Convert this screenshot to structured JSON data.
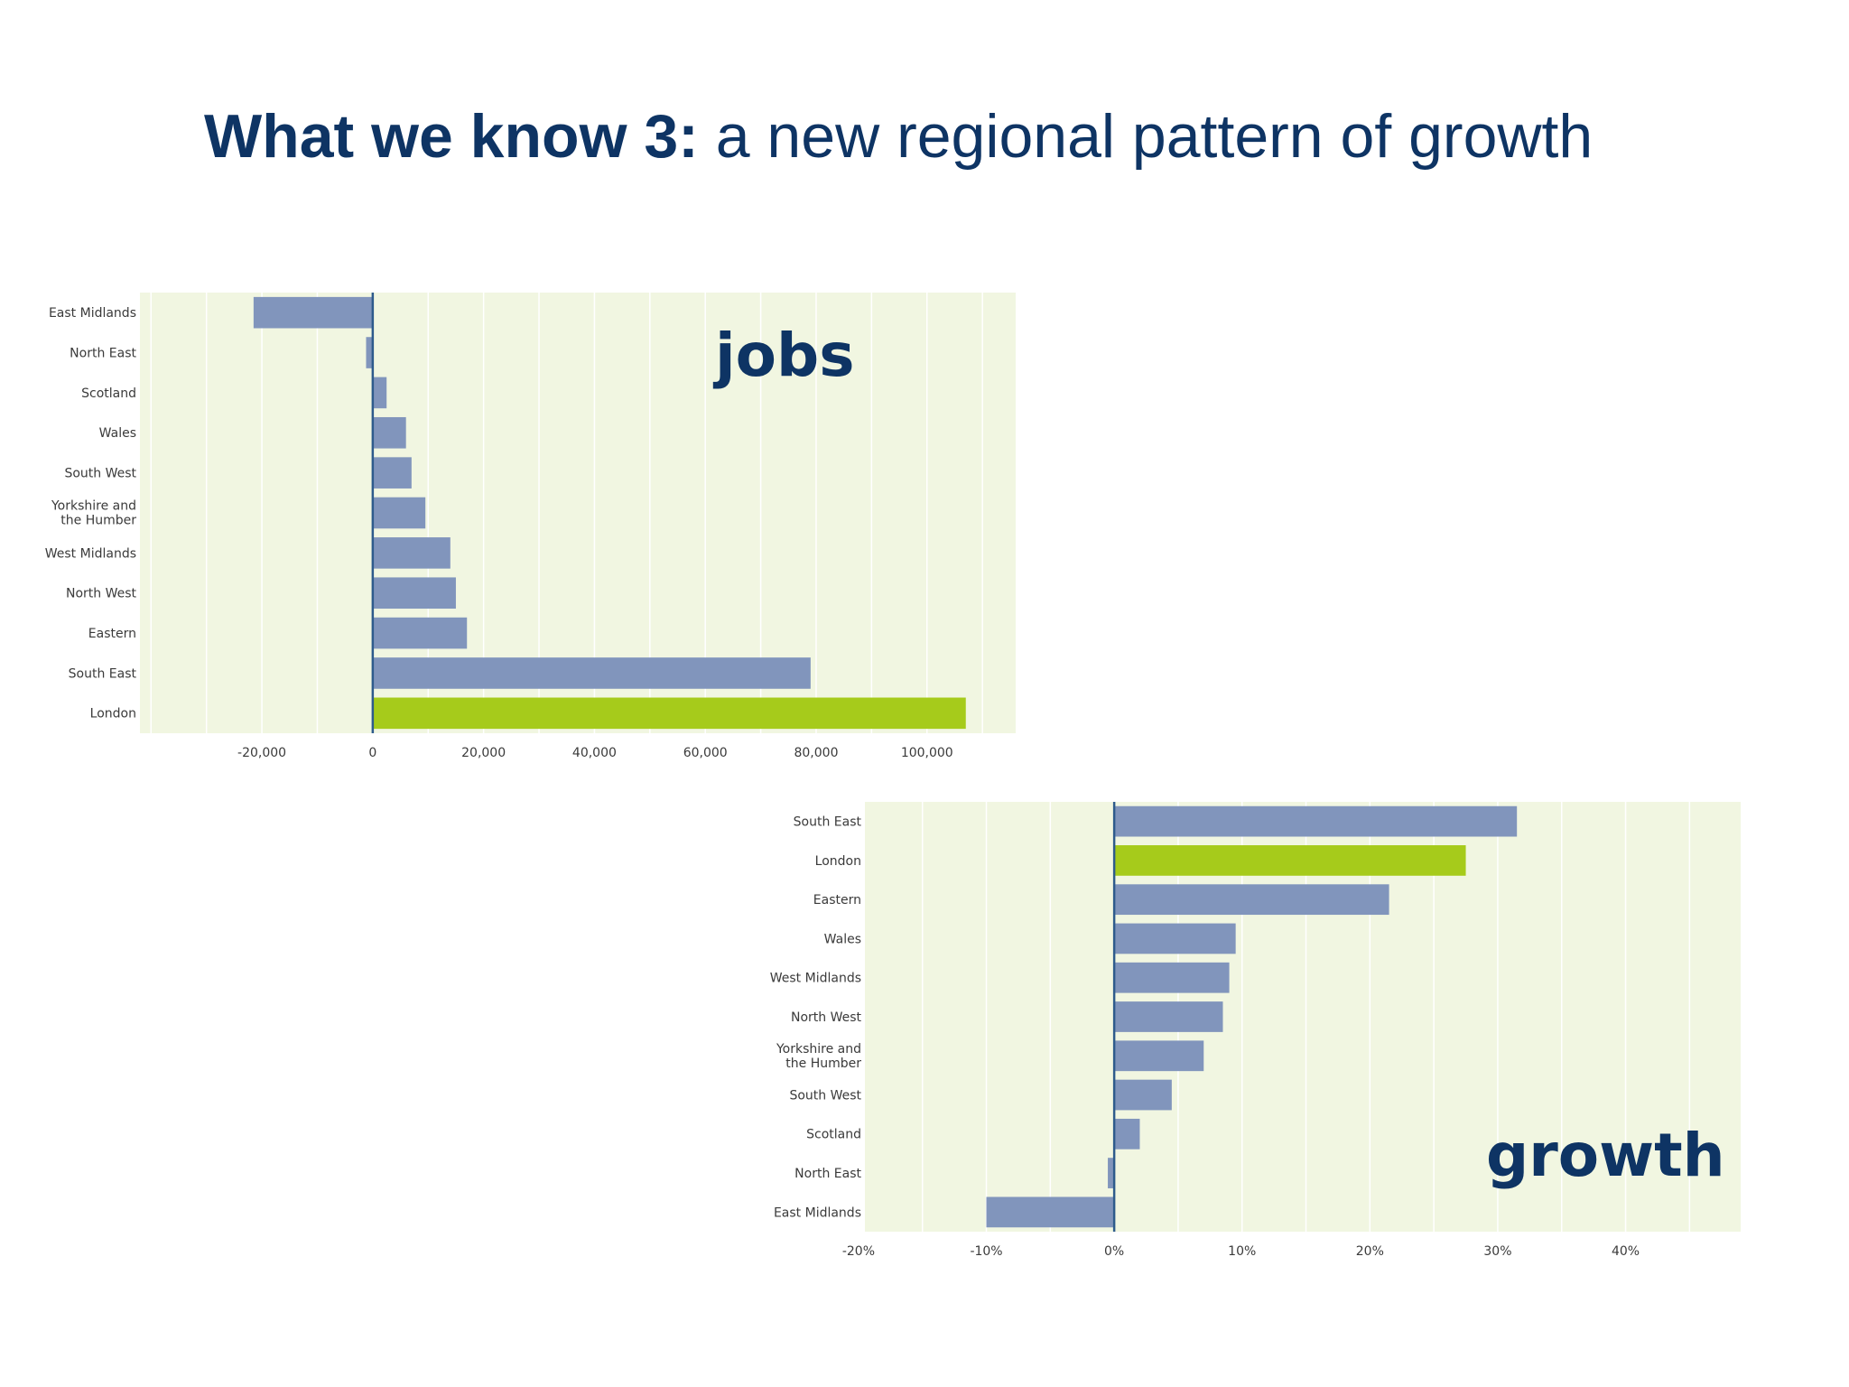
{
  "title": {
    "bold": "What we know 3:",
    "rest": " a new regional pattern of growth"
  },
  "colors": {
    "bar": "#8195bc",
    "highlight": "#a6cb1b",
    "plot_bg": "#f1f6e1",
    "axis": "#2e5b8c",
    "title": "#0e3464"
  },
  "chart_data": [
    {
      "type": "bar",
      "orientation": "horizontal",
      "label": "jobs",
      "categories": [
        "East Midlands",
        "North East",
        "Scotland",
        "Wales",
        "South West",
        "Yorkshire and the Humber",
        "West Midlands",
        "North West",
        "Eastern",
        "South East",
        "London"
      ],
      "values": [
        -21500,
        -1200,
        2500,
        6000,
        7000,
        9500,
        14000,
        15000,
        17000,
        79000,
        107000
      ],
      "highlight": "London",
      "xlim": [
        -42000,
        116000
      ],
      "ticks": [
        -20000,
        0,
        20000,
        40000,
        60000,
        80000,
        100000
      ],
      "tick_labels": [
        "-20,000",
        "0",
        "20,000",
        "40,000",
        "60,000",
        "80,000",
        "100,000"
      ],
      "grid": true
    },
    {
      "type": "bar",
      "orientation": "horizontal",
      "label": "growth",
      "categories": [
        "South East",
        "London",
        "Eastern",
        "Wales",
        "West Midlands",
        "North West",
        "Yorkshire and the Humber",
        "South West",
        "Scotland",
        "North East",
        "East Midlands"
      ],
      "values": [
        31.5,
        27.5,
        21.5,
        9.5,
        9,
        8.5,
        7,
        4.5,
        2,
        -0.5,
        -10
      ],
      "highlight": "London",
      "xlim": [
        -19.5,
        49
      ],
      "ticks": [
        -20,
        -10,
        0,
        10,
        20,
        30,
        40
      ],
      "tick_labels": [
        "-20%",
        "-10%",
        "0%",
        "10%",
        "20%",
        "30%",
        "40%"
      ],
      "grid": true
    }
  ]
}
